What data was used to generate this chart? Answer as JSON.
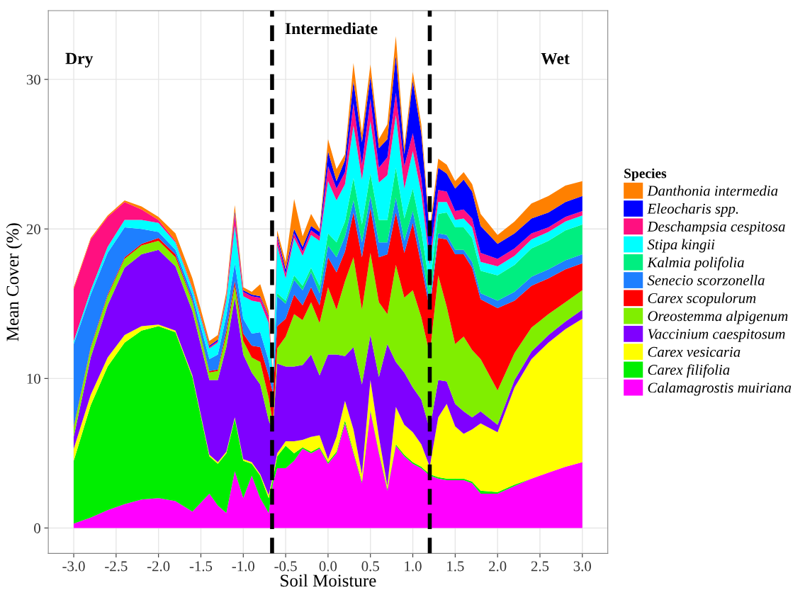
{
  "chart_data": {
    "type": "area",
    "stacked": true,
    "xlabel": "Soil Moisture",
    "ylabel": "Mean Cover (%)",
    "legend_title": "Species",
    "legend": "right",
    "grid": true,
    "xlim": [
      -3.3,
      3.3
    ],
    "ylim": [
      -1.7,
      34.6
    ],
    "xticks": [
      {
        "value": -3,
        "label": "-3.0"
      },
      {
        "value": -2.5,
        "label": "-2.5"
      },
      {
        "value": -2,
        "label": "-2.0"
      },
      {
        "value": -1.5,
        "label": "-1.5"
      },
      {
        "value": -1,
        "label": "-1.0"
      },
      {
        "value": -0.5,
        "label": "-0.5"
      },
      {
        "value": 0,
        "label": "0.0"
      },
      {
        "value": 0.5,
        "label": "0.5"
      },
      {
        "value": 1,
        "label": "1.0"
      },
      {
        "value": 1.5,
        "label": "1.5"
      },
      {
        "value": 2,
        "label": "2.0"
      },
      {
        "value": 2.5,
        "label": "2.5"
      },
      {
        "value": 3,
        "label": "3.0"
      }
    ],
    "yticks": [
      0,
      10,
      20,
      30
    ],
    "x": [
      -3.0,
      -2.8,
      -2.6,
      -2.4,
      -2.2,
      -2.0,
      -1.8,
      -1.6,
      -1.4,
      -1.3,
      -1.2,
      -1.1,
      -1.0,
      -0.9,
      -0.8,
      -0.7,
      -0.65,
      -0.6,
      -0.5,
      -0.4,
      -0.3,
      -0.2,
      -0.1,
      0.0,
      0.1,
      0.2,
      0.3,
      0.4,
      0.5,
      0.6,
      0.7,
      0.8,
      0.9,
      1.0,
      1.1,
      1.2,
      1.3,
      1.4,
      1.5,
      1.6,
      1.7,
      1.8,
      2.0,
      2.2,
      2.4,
      2.6,
      2.8,
      3.0
    ],
    "series": [
      {
        "name": "Calamagrostis muiriana",
        "color": "#ff00ff",
        "values": [
          0.3,
          0.7,
          1.2,
          1.6,
          1.9,
          2.0,
          1.8,
          1.1,
          2.3,
          1.5,
          1.0,
          3.8,
          2.0,
          3.5,
          2.0,
          1.0,
          3.0,
          4.0,
          4.0,
          4.5,
          5.3,
          5.0,
          5.3,
          4.3,
          5.0,
          7.0,
          5.0,
          3.0,
          7.8,
          5.0,
          2.5,
          5.5,
          4.8,
          4.3,
          4.0,
          3.5,
          3.3,
          3.2,
          3.2,
          3.2,
          3.0,
          2.3,
          2.3,
          2.8,
          3.3,
          3.7,
          4.1,
          4.4
        ]
      },
      {
        "name": "Carex filifolia",
        "color": "#00ee00",
        "values": [
          4.2,
          7.5,
          9.6,
          10.8,
          11.3,
          11.5,
          11.3,
          9.0,
          2.5,
          2.8,
          4.0,
          3.5,
          2.5,
          0.8,
          1.5,
          1.0,
          0.3,
          0.8,
          1.5,
          0.5,
          0.1,
          0.1,
          0.1,
          0.1,
          0.1,
          0.2,
          0.1,
          0.1,
          0.1,
          0.1,
          0.1,
          0.1,
          0.1,
          0.1,
          0.1,
          0.1,
          0.1,
          0.1,
          0.1,
          0.1,
          0.1,
          0.2,
          0.1,
          0.1,
          0,
          0,
          0,
          0
        ]
      },
      {
        "name": "Carex vesicaria",
        "color": "#ffff00",
        "values": [
          0.8,
          0.7,
          0.6,
          0.5,
          0.3,
          0.1,
          0.1,
          0.1,
          0.1,
          0.1,
          0.1,
          0.1,
          0.1,
          0.1,
          0.1,
          0.2,
          0.2,
          0.2,
          0.3,
          0.8,
          0.5,
          1.0,
          0.8,
          0.2,
          1.0,
          1.3,
          1.5,
          0.5,
          2.0,
          1.0,
          0.2,
          2.5,
          2.0,
          2.0,
          1.5,
          0.5,
          4.0,
          5.0,
          3.5,
          3.0,
          3.5,
          4.5,
          4.0,
          6.5,
          8.0,
          8.7,
          9.2,
          9.6
        ]
      },
      {
        "name": "Vaccinium caespitosum",
        "color": "#7f00ff",
        "values": [
          0.8,
          2.5,
          3.5,
          4.5,
          4.8,
          5.0,
          4.3,
          4.3,
          5.0,
          5.5,
          7.0,
          8.0,
          7.0,
          6.0,
          6.0,
          5.0,
          3.0,
          6.0,
          5.0,
          5.0,
          5.0,
          5.5,
          4.0,
          7.0,
          5.5,
          3.0,
          5.5,
          6.0,
          3.0,
          4.0,
          9.5,
          3.0,
          3.5,
          3.0,
          3.0,
          2.5,
          2.5,
          1.5,
          1.5,
          1.5,
          0.8,
          0.8,
          0.5,
          0.5,
          0.5,
          0.5,
          0.5,
          0.6
        ]
      },
      {
        "name": "Oreostemma alpigenum",
        "color": "#80ee00",
        "values": [
          0.6,
          0.6,
          0.6,
          0.6,
          0.6,
          0.6,
          0.6,
          0.6,
          0.5,
          0.6,
          0.8,
          0.8,
          0.9,
          1.0,
          1.5,
          1.5,
          0.5,
          1.0,
          2.0,
          3.5,
          3.0,
          3.5,
          3.5,
          4.5,
          3.0,
          5.0,
          6.0,
          5.0,
          5.5,
          5.0,
          2.0,
          6.5,
          5.0,
          6.5,
          5.5,
          5.0,
          7.0,
          5.0,
          4.0,
          5.0,
          4.5,
          3.5,
          2.3,
          1.8,
          1.6,
          1.4,
          1.3,
          1.3
        ]
      },
      {
        "name": "Carex scopulorum",
        "color": "#ff0000",
        "values": [
          0.1,
          0.1,
          0.1,
          0.1,
          0.1,
          0.2,
          0.2,
          0.1,
          0.1,
          0.1,
          0.3,
          0.3,
          0.5,
          0.8,
          1.0,
          1.5,
          2.0,
          1.5,
          1.2,
          1.3,
          1.0,
          1.0,
          1.2,
          2.0,
          2.5,
          2.0,
          3.0,
          3.5,
          3.0,
          3.0,
          4.0,
          3.5,
          3.0,
          4.5,
          3.5,
          3.0,
          2.5,
          4.5,
          6.0,
          5.5,
          5.5,
          4.0,
          5.5,
          3.5,
          2.8,
          2.4,
          2.2,
          1.8
        ]
      },
      {
        "name": "Senecio scorzonella",
        "color": "#1e7fff",
        "values": [
          5.5,
          3.5,
          2.8,
          2.0,
          1.0,
          0.4,
          0.3,
          0.4,
          0.8,
          1.0,
          1.0,
          1.2,
          1.0,
          0.8,
          1.0,
          1.0,
          0.6,
          2.0,
          1.0,
          1.0,
          1.0,
          1.0,
          0.8,
          0.8,
          1.0,
          1.0,
          0.8,
          1.0,
          0.8,
          1.0,
          0.8,
          1.0,
          0.8,
          0.8,
          0.8,
          0.5,
          0.3,
          0.3,
          0.3,
          0.3,
          0.4,
          0.4,
          0.5,
          0.6,
          0.6,
          0.6,
          0.6,
          0.6
        ]
      },
      {
        "name": "Kalmia polifolia",
        "color": "#00ee80",
        "values": [
          0,
          0,
          0,
          0,
          0,
          0,
          0,
          0,
          0,
          0,
          0,
          0,
          0,
          0,
          0,
          0,
          0,
          0.2,
          0.2,
          0.3,
          0.3,
          0.3,
          0.5,
          0.8,
          1.0,
          1.0,
          1.5,
          1.2,
          1.5,
          1.5,
          1.5,
          2.0,
          1.5,
          1.5,
          1.5,
          1.0,
          1.3,
          1.5,
          1.5,
          1.5,
          1.6,
          1.5,
          1.7,
          1.8,
          1.9,
          1.9,
          2.0,
          2.0
        ]
      },
      {
        "name": "Stipa kingii",
        "color": "#00ffff",
        "values": [
          0.2,
          0.3,
          0.4,
          0.5,
          0.6,
          0.6,
          0.5,
          0.4,
          0.7,
          0.8,
          1.0,
          2.5,
          1.5,
          2.2,
          2.0,
          2.5,
          0.5,
          3.2,
          1.5,
          2.5,
          2.0,
          2.2,
          3.0,
          3.5,
          2.8,
          2.5,
          3.5,
          3.0,
          3.5,
          2.5,
          3.0,
          3.5,
          2.0,
          2.5,
          2.5,
          1.5,
          0.8,
          0.7,
          0.5,
          0.6,
          0.7,
          0.6,
          0.6,
          0.6,
          0.6,
          0.6,
          0.6,
          0.6
        ]
      },
      {
        "name": "Deschampsia cespitosa",
        "color": "#ff1080",
        "values": [
          3.5,
          3.4,
          2.0,
          1.2,
          0.7,
          0.2,
          0.1,
          0.1,
          0.1,
          0.1,
          0.2,
          0.8,
          0.3,
          0.3,
          0.3,
          0.4,
          0.1,
          0.5,
          0.3,
          0.3,
          0.3,
          0.3,
          0.3,
          1.0,
          0.8,
          0.8,
          1.5,
          1.0,
          1.5,
          1.0,
          1.2,
          1.5,
          1.5,
          1.2,
          1.0,
          0.5,
          0.8,
          0.7,
          0.6,
          0.6,
          0.6,
          0.6,
          0.5,
          0.5,
          0.4,
          0.3,
          0.3,
          0.3
        ]
      },
      {
        "name": "Eleocharis spp.",
        "color": "#0000ff",
        "values": [
          0,
          0,
          0,
          0,
          0,
          0,
          0,
          0,
          0.1,
          0.1,
          0.1,
          0.2,
          0.1,
          0.1,
          0.1,
          0.1,
          0,
          0.2,
          0.3,
          0.3,
          0.3,
          0.3,
          0.3,
          1.0,
          0.5,
          0.8,
          1.5,
          1.5,
          1.5,
          1.3,
          1.2,
          2.5,
          0.8,
          3.5,
          3.0,
          1.5,
          1.5,
          1.2,
          1.5,
          2.0,
          1.8,
          1.8,
          1.0,
          1.0,
          1.0,
          1.0,
          1.0,
          1.0
        ]
      },
      {
        "name": "Danthonia intermedia",
        "color": "#ff8000",
        "values": [
          0.1,
          0.1,
          0.1,
          0.1,
          0.2,
          0.2,
          0.5,
          0.6,
          0.3,
          0.3,
          0.3,
          0.4,
          0.2,
          0.2,
          0.8,
          0.3,
          0.1,
          0.3,
          0.5,
          2.0,
          0.7,
          0.8,
          0.2,
          0.8,
          0.8,
          0.4,
          1.2,
          0.6,
          0.8,
          0.6,
          1.0,
          1.3,
          0.5,
          0.6,
          0.6,
          0.4,
          0.6,
          0.6,
          0.5,
          0.5,
          0.5,
          0.8,
          0.6,
          0.8,
          1.0,
          1.1,
          1.1,
          1.0
        ]
      }
    ],
    "ref_lines": [
      {
        "axis": "x",
        "value": -0.66,
        "color": "#000000",
        "line_style": "dashed"
      },
      {
        "axis": "x",
        "value": 1.2,
        "color": "#000000",
        "line_style": "dashed"
      }
    ],
    "annotations": [
      "Dry",
      "Intermediate",
      "Wet"
    ]
  }
}
